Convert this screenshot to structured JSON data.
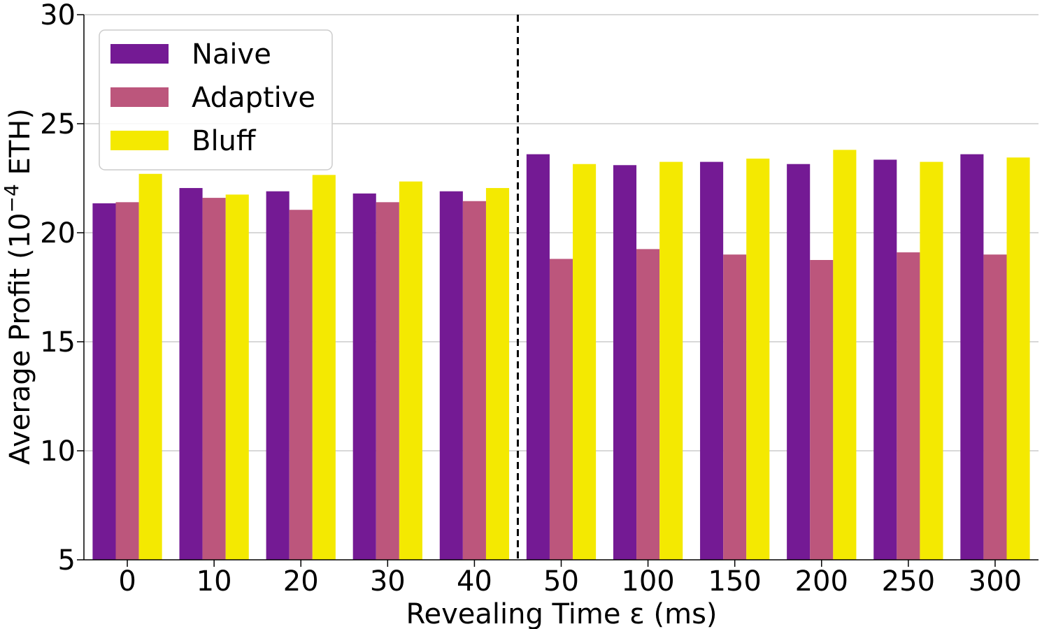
{
  "chart_data": {
    "type": "bar",
    "categories": [
      "0",
      "10",
      "20",
      "30",
      "40",
      "50",
      "100",
      "150",
      "200",
      "250",
      "300"
    ],
    "series": [
      {
        "name": "Naive",
        "color": "#741a94",
        "values": [
          21.35,
          22.05,
          21.9,
          21.8,
          21.9,
          23.6,
          23.1,
          23.25,
          23.15,
          23.35,
          23.6
        ]
      },
      {
        "name": "Adaptive",
        "color": "#bc567c",
        "values": [
          21.4,
          21.6,
          21.05,
          21.4,
          21.45,
          18.8,
          19.25,
          19.0,
          18.75,
          19.1,
          19.0
        ]
      },
      {
        "name": "Bluff",
        "color": "#f4e901",
        "values": [
          22.7,
          21.75,
          22.65,
          22.35,
          22.05,
          23.15,
          23.25,
          23.4,
          23.8,
          23.25,
          23.45
        ]
      }
    ],
    "ylim": [
      5,
      30
    ],
    "yticks": [
      "5",
      "10",
      "15",
      "20",
      "25",
      "30"
    ],
    "ylabel_main": "Average Profit (10",
    "ylabel_sup": "−4",
    "ylabel_end": " ETH)",
    "xlabel": "Revealing Time ε (ms)",
    "grid": "horizontal",
    "legend_position": "top-left",
    "divider": {
      "after_category": "40",
      "style": "dashed"
    }
  }
}
